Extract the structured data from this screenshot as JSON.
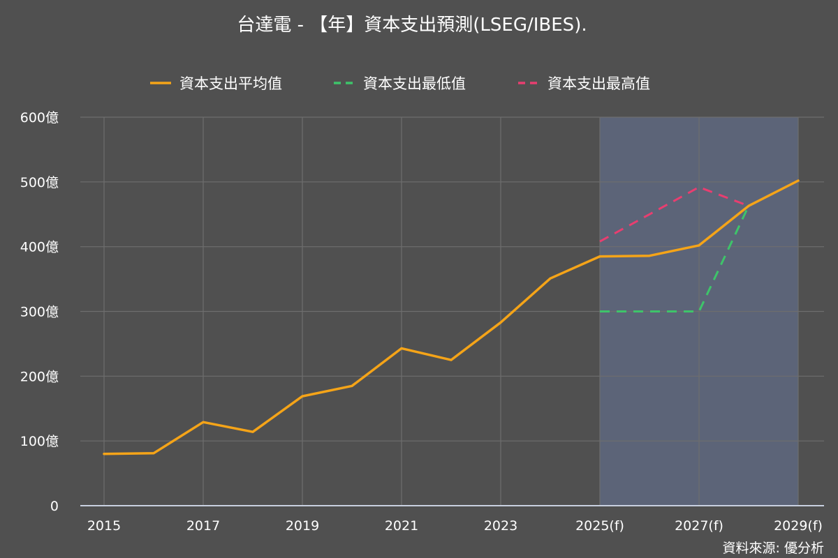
{
  "chart_data": {
    "type": "line",
    "title": "台達電 - 【年】資本支出預測(LSEG/IBES).",
    "source": "資料來源: 優分析",
    "x": [
      "2015",
      "2016",
      "2017",
      "2018",
      "2019",
      "2020",
      "2021",
      "2022",
      "2023",
      "2024",
      "2025(f)",
      "2026(f)",
      "2027(f)",
      "2028(f)",
      "2029(f)"
    ],
    "x_tick_labels": [
      "2015",
      "2017",
      "2019",
      "2021",
      "2023",
      "2025(f)",
      "2027(f)",
      "2029(f)"
    ],
    "y_tick_labels": [
      "0",
      "100億",
      "200億",
      "300億",
      "400億",
      "500億",
      "600億"
    ],
    "ylim": [
      0,
      600
    ],
    "y_unit": "億",
    "grid": true,
    "legend_position": "top-center",
    "forecast_region": {
      "from": "2025(f)",
      "to": "2029(f)",
      "color": "#5c6478"
    },
    "series": [
      {
        "name": "資本支出平均值",
        "color": "#f5a418",
        "style": "solid",
        "values": [
          80,
          81,
          129,
          114,
          169,
          185,
          243,
          225,
          283,
          351,
          385,
          386,
          402,
          463,
          502
        ]
      },
      {
        "name": "資本支出最低值",
        "color": "#3ec46a",
        "style": "dashed",
        "values": [
          null,
          null,
          null,
          null,
          null,
          null,
          null,
          null,
          null,
          null,
          300,
          300,
          300,
          463,
          502
        ]
      },
      {
        "name": "資本支出最高值",
        "color": "#e83e70",
        "style": "dashed",
        "values": [
          null,
          null,
          null,
          null,
          null,
          null,
          null,
          null,
          null,
          null,
          408,
          450,
          492,
          463,
          502
        ]
      }
    ]
  }
}
